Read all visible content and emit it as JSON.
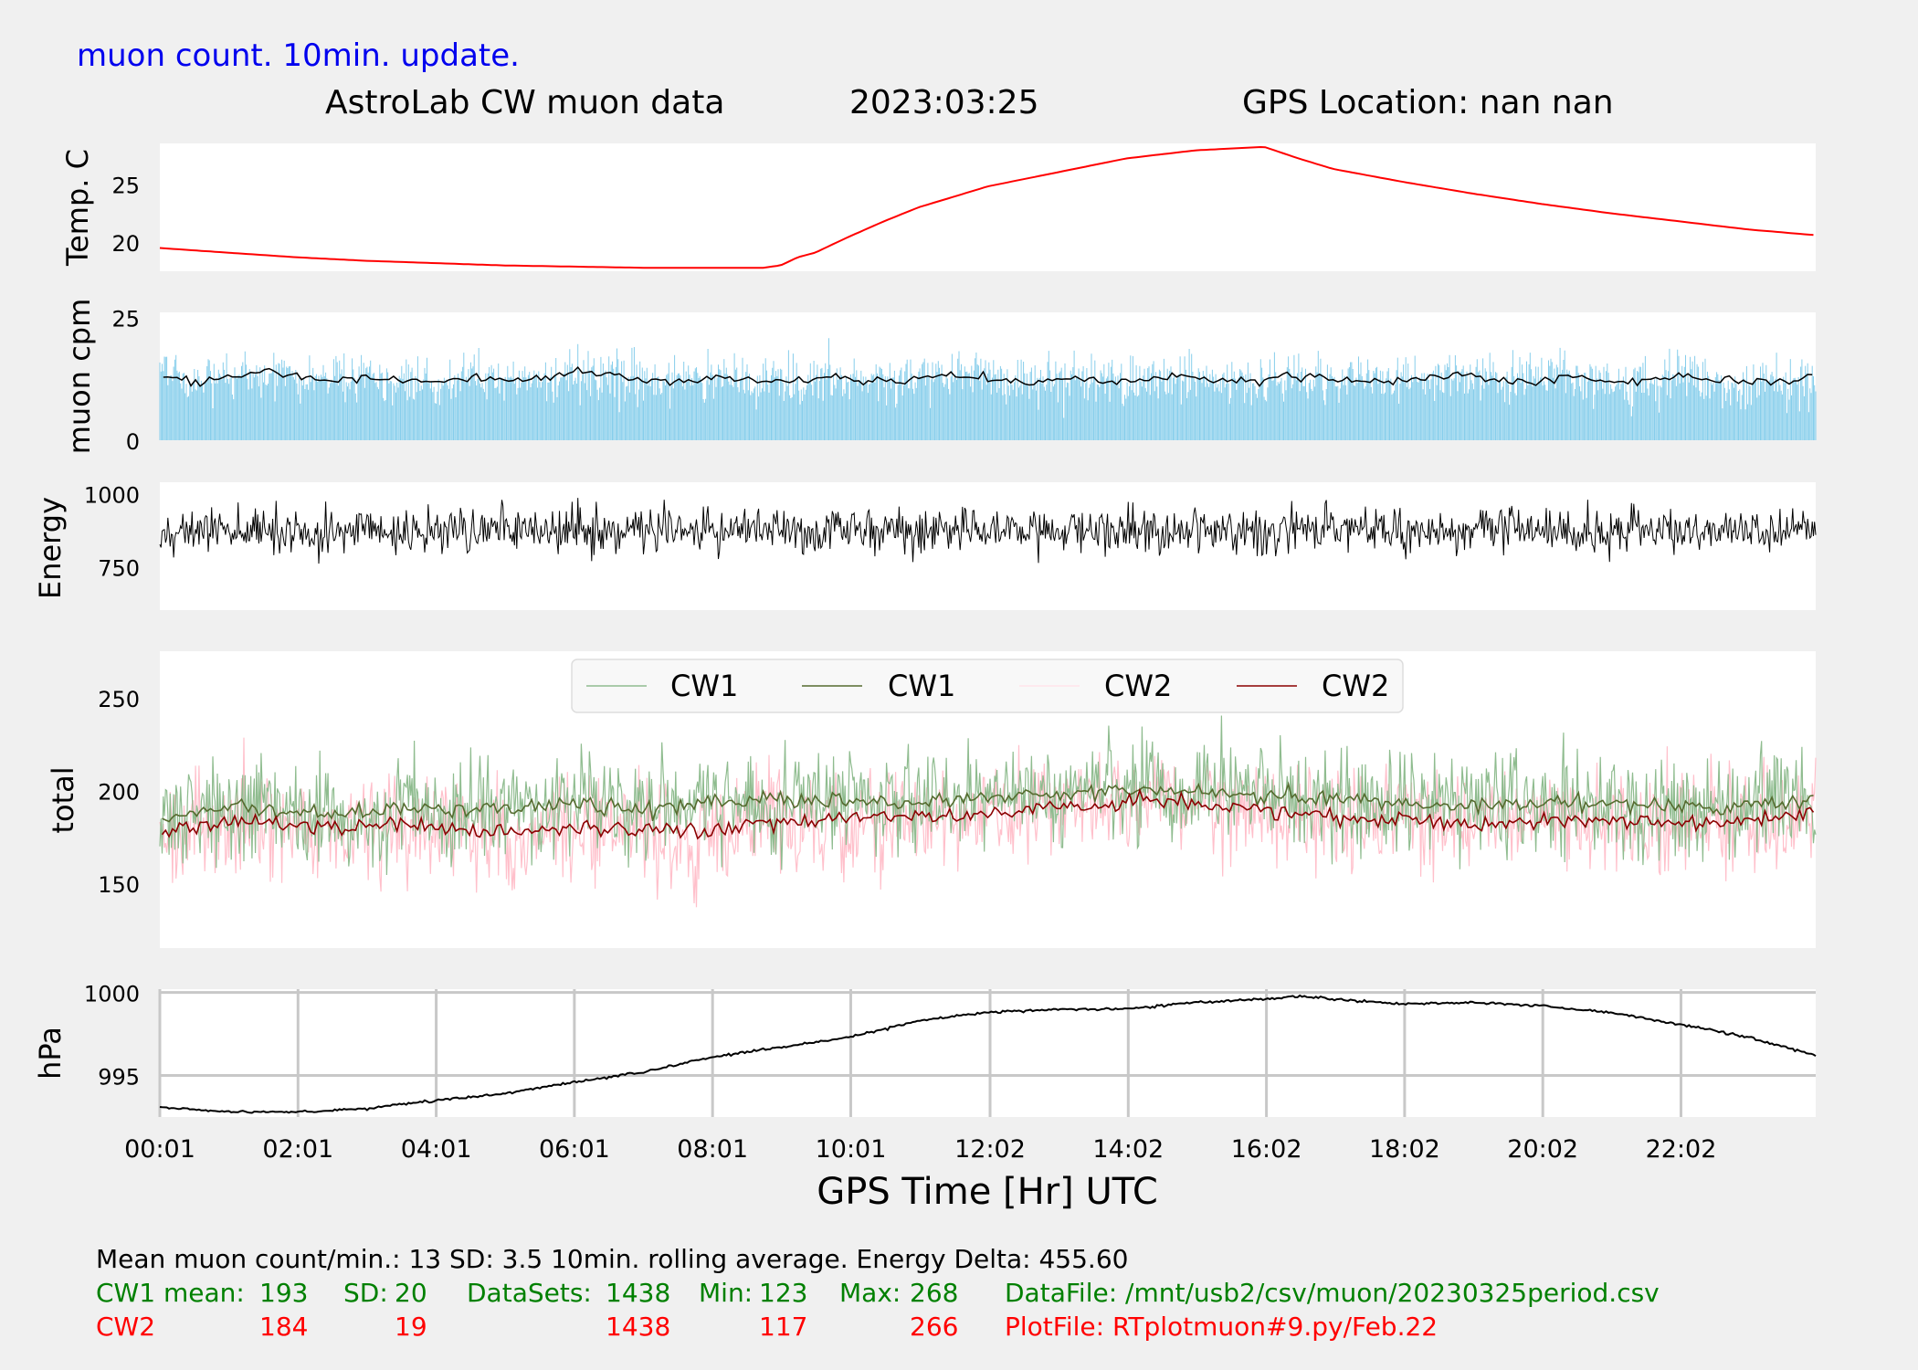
{
  "header": {
    "update_note": "muon count.  10min. update.",
    "title_left": "AstroLab CW muon data",
    "title_date": "2023:03:25",
    "title_gps": "GPS Location: nan   nan"
  },
  "colors": {
    "background": "#f0f0f0",
    "panel": "#ffffff",
    "temperature": "#ff0000",
    "muon_bars": "#87ceeb",
    "black": "#000000",
    "cw1_raw": "#8fbc8f",
    "cw1_avg": "#556b2f",
    "cw2_raw": "#ffc0cb",
    "cw2_avg": "#8b0000",
    "note_blue": "#0000ee",
    "stats_green": "#008000",
    "stats_red": "#ff0000",
    "grid": "#c8c8c8"
  },
  "chart_data": [
    {
      "type": "line",
      "ylabel": "Temp. C",
      "yticks": [
        20,
        25
      ],
      "ylim": [
        17.5,
        28.5
      ],
      "x": [
        "00:01",
        "01:00",
        "02:00",
        "03:00",
        "04:00",
        "05:00",
        "06:00",
        "07:00",
        "08:00",
        "08:45",
        "09:00",
        "09:15",
        "09:30",
        "10:00",
        "10:30",
        "11:00",
        "12:00",
        "13:00",
        "14:00",
        "15:00",
        "16:00",
        "16:30",
        "17:00",
        "18:00",
        "19:00",
        "20:00",
        "21:00",
        "22:00",
        "23:00",
        "23:59"
      ],
      "values": [
        19.5,
        19.1,
        18.7,
        18.4,
        18.2,
        18.0,
        17.9,
        17.8,
        17.8,
        17.8,
        18.0,
        18.7,
        19.1,
        20.5,
        21.8,
        23.0,
        24.8,
        26.0,
        27.2,
        27.9,
        28.2,
        27.2,
        26.3,
        25.2,
        24.2,
        23.3,
        22.5,
        21.8,
        21.1,
        20.6
      ],
      "grid": false
    },
    {
      "type": "bar",
      "ylabel": "muon cpm",
      "yticks": [
        0,
        25
      ],
      "ylim": [
        0,
        26
      ],
      "series": [
        {
          "values": [
            13,
            12,
            13,
            14,
            13,
            12,
            13,
            12,
            12,
            13,
            12,
            13,
            14,
            13,
            12,
            12,
            13,
            12,
            12,
            13,
            12,
            12,
            13,
            13,
            12,
            12,
            13,
            12,
            12,
            13,
            12,
            12,
            13,
            13,
            12,
            12,
            13,
            13,
            12,
            12,
            13,
            12,
            12,
            13,
            12,
            12,
            12,
            13
          ]
        }
      ],
      "x_range": [
        "00:01",
        "23:59"
      ],
      "grid": false
    },
    {
      "type": "line",
      "ylabel": "Energy",
      "yticks": [
        750,
        1000
      ],
      "ylim": [
        600,
        1040
      ],
      "x_range": [
        "00:01",
        "23:59"
      ],
      "grid": false
    },
    {
      "type": "line",
      "ylabel": "total",
      "yticks": [
        150,
        200,
        250
      ],
      "ylim": [
        115,
        275
      ],
      "legend": "top-center",
      "series": [
        {
          "name": "CW1",
          "style": "raw"
        },
        {
          "name": "CW1",
          "style": "rolling",
          "values": [
            185,
            188,
            192,
            190,
            188,
            187,
            189,
            191,
            190,
            189,
            190,
            192,
            193,
            191,
            190,
            192,
            194,
            195,
            196,
            195,
            194,
            193,
            194,
            196,
            197,
            198,
            199,
            200,
            201,
            200,
            199,
            198,
            197,
            196,
            195,
            194,
            193,
            192,
            192,
            193,
            194,
            193,
            192,
            191,
            191,
            192,
            193,
            194
          ]
        },
        {
          "name": "CW2",
          "style": "raw"
        },
        {
          "name": "CW2",
          "style": "rolling",
          "values": [
            176,
            180,
            184,
            182,
            180,
            179,
            181,
            182,
            180,
            178,
            177,
            178,
            179,
            180,
            178,
            177,
            179,
            182,
            183,
            184,
            185,
            186,
            185,
            186,
            188,
            190,
            191,
            193,
            195,
            194,
            192,
            190,
            188,
            186,
            185,
            184,
            183,
            182,
            183,
            184,
            185,
            184,
            183,
            182,
            182,
            184,
            186,
            190
          ]
        }
      ],
      "x_range": [
        "00:01",
        "23:59"
      ],
      "grid": false
    },
    {
      "type": "line",
      "ylabel": "hPa",
      "yticks": [
        995,
        1000
      ],
      "ylim": [
        992.5,
        1000.2
      ],
      "x": [
        "00:01",
        "01:00",
        "02:00",
        "03:00",
        "04:00",
        "05:00",
        "06:00",
        "07:00",
        "08:00",
        "09:00",
        "10:00",
        "11:00",
        "12:00",
        "13:00",
        "14:00",
        "15:00",
        "16:00",
        "16:30",
        "17:00",
        "18:00",
        "19:00",
        "20:00",
        "21:00",
        "22:00",
        "23:00",
        "23:59"
      ],
      "values": [
        993.1,
        992.8,
        992.8,
        993.0,
        993.5,
        993.9,
        994.6,
        995.2,
        996.1,
        996.7,
        997.3,
        998.3,
        998.8,
        999.0,
        999.0,
        999.4,
        999.6,
        999.8,
        999.6,
        999.3,
        999.4,
        999.2,
        998.8,
        998.1,
        997.3,
        996.2
      ],
      "xticks": [
        "00:01",
        "02:01",
        "04:01",
        "06:01",
        "08:01",
        "10:01",
        "12:02",
        "14:02",
        "16:02",
        "18:02",
        "20:02",
        "22:02"
      ],
      "xlabel": "GPS Time  [Hr] UTC",
      "grid": true
    }
  ],
  "stats": {
    "line1": "Mean muon count/min.: 13  SD: 3.5   10min. rolling average.    Energy Delta:  455.60",
    "cw1": {
      "label": "CW1 mean:",
      "mean": "193",
      "sd_label": "SD:",
      "sd": "20",
      "datasets_label": "DataSets:",
      "datasets": "1438",
      "min_label": "Min:",
      "min": "123",
      "max_label": "Max:",
      "max": "268",
      "file": "DataFile: /mnt/usb2/csv/muon/20230325period.csv"
    },
    "cw2": {
      "label": "CW2",
      "mean": "184",
      "sd": "19",
      "datasets": "1438",
      "min": "117",
      "max": "266",
      "file": "PlotFile: RTplotmuon#9.py/Feb.22"
    }
  }
}
